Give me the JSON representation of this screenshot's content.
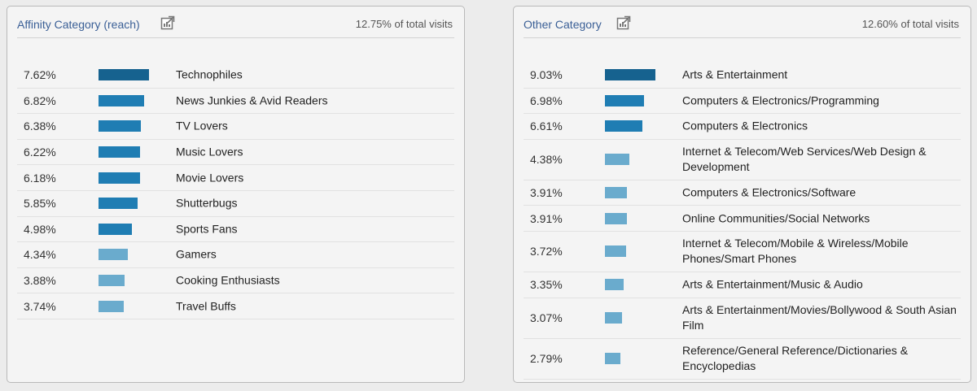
{
  "colors": {
    "bar_dark": "#16628f",
    "bar_mid": "#1f7db3",
    "bar_light": "#6aabcd",
    "title": "#3a5f96"
  },
  "left_panel": {
    "title": "Affinity Category (reach)",
    "icon": "export-icon",
    "summary": "12.75% of total visits",
    "rows": [
      {
        "pct": "7.62%",
        "value": 7.62,
        "label": "Technophiles",
        "shade": "dark"
      },
      {
        "pct": "6.82%",
        "value": 6.82,
        "label": "News Junkies & Avid Readers",
        "shade": "mid"
      },
      {
        "pct": "6.38%",
        "value": 6.38,
        "label": "TV Lovers",
        "shade": "mid"
      },
      {
        "pct": "6.22%",
        "value": 6.22,
        "label": "Music Lovers",
        "shade": "mid"
      },
      {
        "pct": "6.18%",
        "value": 6.18,
        "label": "Movie Lovers",
        "shade": "mid"
      },
      {
        "pct": "5.85%",
        "value": 5.85,
        "label": "Shutterbugs",
        "shade": "mid"
      },
      {
        "pct": "4.98%",
        "value": 4.98,
        "label": "Sports Fans",
        "shade": "mid"
      },
      {
        "pct": "4.34%",
        "value": 4.34,
        "label": "Gamers",
        "shade": "light"
      },
      {
        "pct": "3.88%",
        "value": 3.88,
        "label": "Cooking Enthusiasts",
        "shade": "light"
      },
      {
        "pct": "3.74%",
        "value": 3.74,
        "label": "Travel Buffs",
        "shade": "light"
      }
    ]
  },
  "right_panel": {
    "title": "Other Category",
    "icon": "export-icon",
    "summary": "12.60% of total visits",
    "rows": [
      {
        "pct": "9.03%",
        "value": 9.03,
        "label": "Arts & Entertainment",
        "shade": "dark"
      },
      {
        "pct": "6.98%",
        "value": 6.98,
        "label": "Computers & Electronics/Programming",
        "shade": "mid"
      },
      {
        "pct": "6.61%",
        "value": 6.61,
        "label": "Computers & Electronics",
        "shade": "mid"
      },
      {
        "pct": "4.38%",
        "value": 4.38,
        "label": "Internet & Telecom/Web Services/Web Design & Development",
        "shade": "light"
      },
      {
        "pct": "3.91%",
        "value": 3.91,
        "label": "Computers & Electronics/Software",
        "shade": "light"
      },
      {
        "pct": "3.91%",
        "value": 3.91,
        "label": "Online Communities/Social Networks",
        "shade": "light"
      },
      {
        "pct": "3.72%",
        "value": 3.72,
        "label": "Internet & Telecom/Mobile & Wireless/Mobile Phones/Smart Phones",
        "shade": "light"
      },
      {
        "pct": "3.35%",
        "value": 3.35,
        "label": "Arts & Entertainment/Music & Audio",
        "shade": "light"
      },
      {
        "pct": "3.07%",
        "value": 3.07,
        "label": "Arts & Entertainment/Movies/Bollywood & South Asian Film",
        "shade": "light"
      },
      {
        "pct": "2.79%",
        "value": 2.79,
        "label": "Reference/General Reference/Dictionaries & Encyclopedias",
        "shade": "light"
      }
    ]
  }
}
